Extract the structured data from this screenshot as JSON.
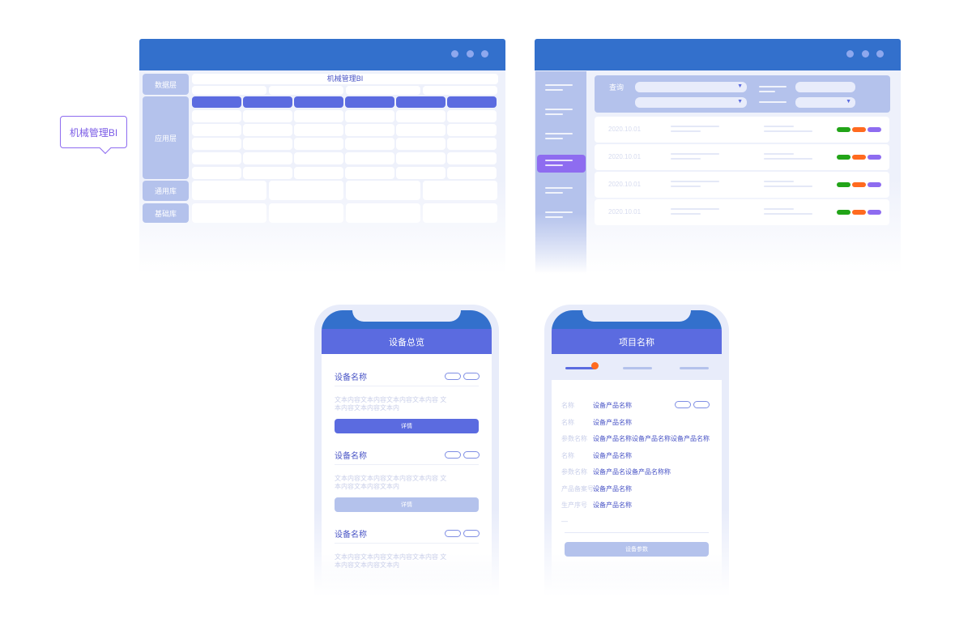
{
  "desktop_bi": {
    "title": "机械管理BI",
    "layers": [
      "数据层",
      "应用层",
      "通用库",
      "基础库"
    ]
  },
  "tooltip": "机械管理BI",
  "desktop_list": {
    "query_label": "查询",
    "rows": [
      "2020.10.01",
      "2020.10.01",
      "2020.10.01",
      "2020.10.01"
    ],
    "tag_colors": [
      "#22a418",
      "#ff6a1f",
      "#8e6cf0"
    ]
  },
  "phone_overview": {
    "title": "设备总览",
    "cards": [
      {
        "name": "设备名称",
        "text": "文本内容文本内容文本内容文本内容 文本内容文本内容文本内",
        "button": "详情",
        "active": true
      },
      {
        "name": "设备名称",
        "text": "文本内容文本内容文本内容文本内容 文本内容文本内容文本内",
        "button": "详情",
        "active": false
      },
      {
        "name": "设备名称",
        "text": "文本内容文本内容文本内容文本内容 文本内容文本内容文本内"
      }
    ]
  },
  "phone_project": {
    "title": "项目名称",
    "fields": [
      {
        "k": "名称",
        "v": "设备产品名称"
      },
      {
        "k": "名称",
        "v": "设备产品名称"
      },
      {
        "k": "参数名称",
        "v": "设备产品名称设备产品名称设备产品名称"
      },
      {
        "k": "名称",
        "v": "设备产品名称"
      },
      {
        "k": "参数名称",
        "v": "设备产品名设备产品名称称"
      },
      {
        "k": "产品备案号",
        "v": "设备产品名称"
      },
      {
        "k": "生产序号",
        "v": "设备产品名称"
      },
      {
        "k": "—",
        "v": ""
      }
    ],
    "button": "设备参数"
  },
  "colors": {
    "header": "#3370cc",
    "accent": "#5b6be0",
    "purple": "#8e6cf0",
    "soft": "#b4c2ec"
  }
}
